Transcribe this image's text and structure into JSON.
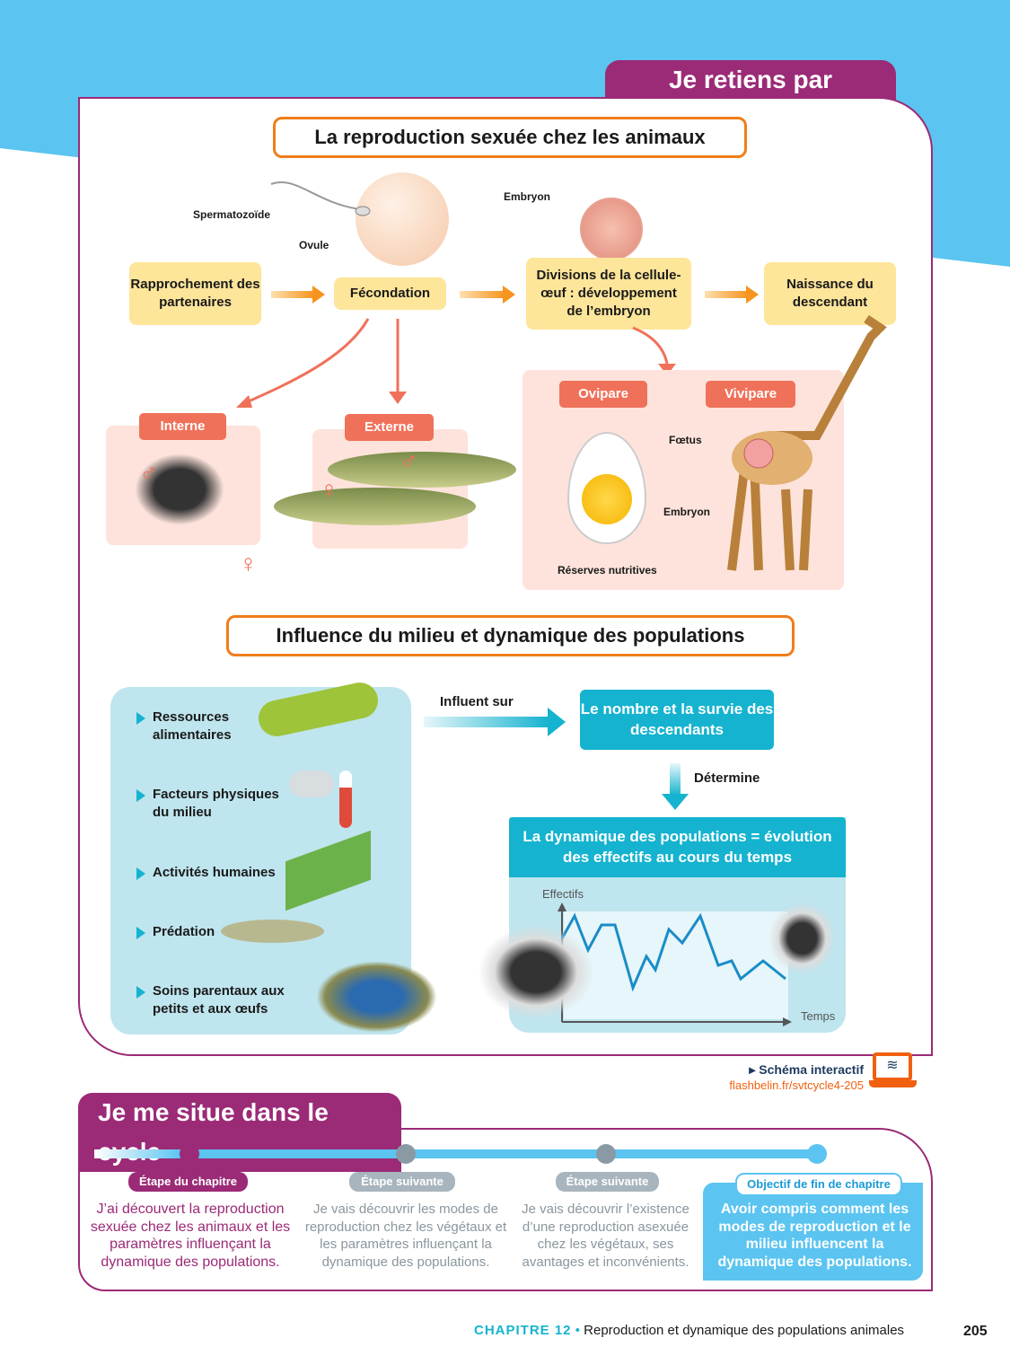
{
  "header_tab": "Je retiens par l'image",
  "section1": {
    "title": "La reproduction sexuée chez les animaux",
    "steps": [
      "Rapprochement des partenaires",
      "Fécondation",
      "Divisions de la cellule-œuf : développement de l’embryon",
      "Naissance du descendant"
    ],
    "labels": {
      "sperm": "Spermatozoïde",
      "ovule": "Ovule",
      "embryon_top": "Embryon",
      "interne": "Interne",
      "externe": "Externe",
      "ovipare": "Ovipare",
      "vivipare": "Vivipare",
      "foetus": "Fœtus",
      "embryon_egg": "Embryon",
      "reserves": "Réserves nutritives",
      "male": "♂",
      "female": "♀"
    }
  },
  "section2": {
    "title": "Influence du milieu et dynamique des populations",
    "factors": [
      "Ressources alimentaires",
      "Facteurs physiques du milieu",
      "Activités humaines",
      "Prédation",
      "Soins parentaux aux petits et aux œufs"
    ],
    "influent_sur": "Influent sur",
    "result_box": "Le nombre et la survie des descendants",
    "determine": "Détermine",
    "dynamics_box": "La dynamique des populations = évolution des effectifs au cours du temps",
    "graph_y": "Effectifs",
    "graph_x": "Temps"
  },
  "interactive": {
    "label": "Schéma interactif",
    "url": "flashbelin.fr/svtcycle4-205"
  },
  "cycle": {
    "tab": "Je me situe dans le cycle",
    "steps": [
      {
        "badge": "Étape du chapitre",
        "text": "J’ai découvert la reproduction sexuée chez les animaux et les paramètres influençant la dynamique des populations."
      },
      {
        "badge": "Étape suivante",
        "text": "Je vais découvrir les modes de reproduction chez les végétaux et les paramètres influençant la dynamique des populations."
      },
      {
        "badge": "Étape suivante",
        "text": "Je vais découvrir l’existence d’une reproduction asexuée chez les végétaux, ses avantages et inconvénients."
      },
      {
        "badge": "Objectif de fin de chapitre",
        "text": "Avoir compris comment les modes de reproduction et le milieu influencent la dynamique des populations."
      }
    ]
  },
  "footer": {
    "chapter": "CHAPITRE 12",
    "separator": "•",
    "title": "Reproduction et dynamique des populations animales",
    "page": "205"
  },
  "colors": {
    "sky": "#5bc4f0",
    "magenta": "#9b2a77",
    "orange": "#f07d1a",
    "teal": "#15b3cf"
  }
}
